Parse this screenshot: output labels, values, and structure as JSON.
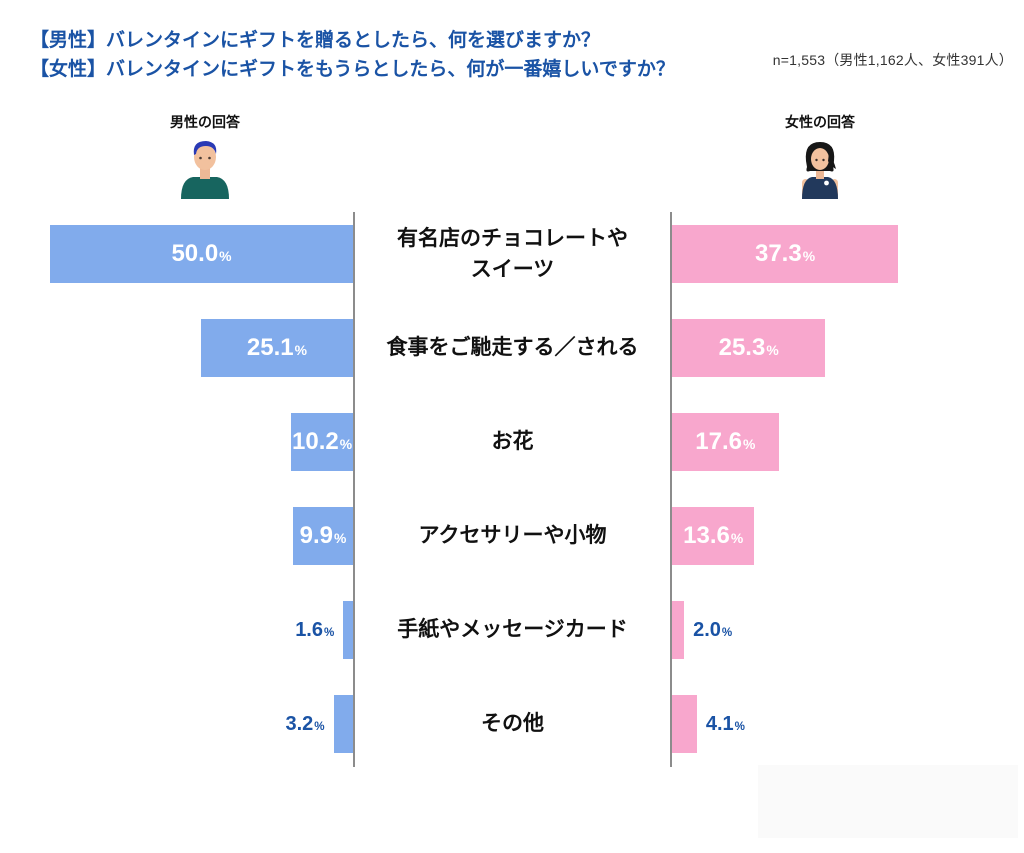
{
  "header": {
    "title_line1": "【男性】バレンタインにギフトを贈るとしたら、何を選びますか？",
    "title_line2": "【女性】バレンタインにギフトをもうらとしたら、何が一番嬉しいですか？",
    "sample_note": "n=1,553（男性1,162人、女性391人）"
  },
  "legend": {
    "male_label": "男性の回答",
    "female_label": "女性の回答"
  },
  "chart_data": {
    "type": "bar",
    "subtype": "diverging-horizontal",
    "title": "バレンタインのギフト 男女比較",
    "categories": [
      "有名店のチョコレートやスイーツ",
      "食事をご馳走する／される",
      "お花",
      "アクセサリーや小物",
      "手紙やメッセージカード",
      "その他"
    ],
    "categories_display": [
      "有名店のチョコレートや\nスイーツ",
      "食事をご馳走する／される",
      "お花",
      "アクセサリーや小物",
      "手紙やメッセージカード",
      "その他"
    ],
    "series": [
      {
        "name": "男性",
        "values": [
          50.0,
          25.1,
          10.2,
          9.9,
          1.6,
          3.2
        ],
        "display": [
          "50.0",
          "25.1",
          "10.2",
          "9.9",
          "1.6",
          "3.2"
        ],
        "color": "#81ABEC",
        "direction": "left"
      },
      {
        "name": "女性",
        "values": [
          37.3,
          25.3,
          17.6,
          13.6,
          2.0,
          4.1
        ],
        "display": [
          "37.3",
          "25.3",
          "17.6",
          "13.6",
          "2.0",
          "4.1"
        ],
        "color": "#F8A7CD",
        "direction": "right"
      }
    ],
    "value_suffix": "%",
    "xlim": [
      0,
      50
    ],
    "inside_label_min": 9,
    "grid": false,
    "legend_position": "top"
  },
  "colors": {
    "accent_text_blue": "#1A53A5",
    "male_bar": "#81ABEC",
    "female_bar": "#F8A7CD",
    "category_text": "#111111",
    "divider_line": "#8C8C8C",
    "inside_value_text": "#ffffff"
  }
}
